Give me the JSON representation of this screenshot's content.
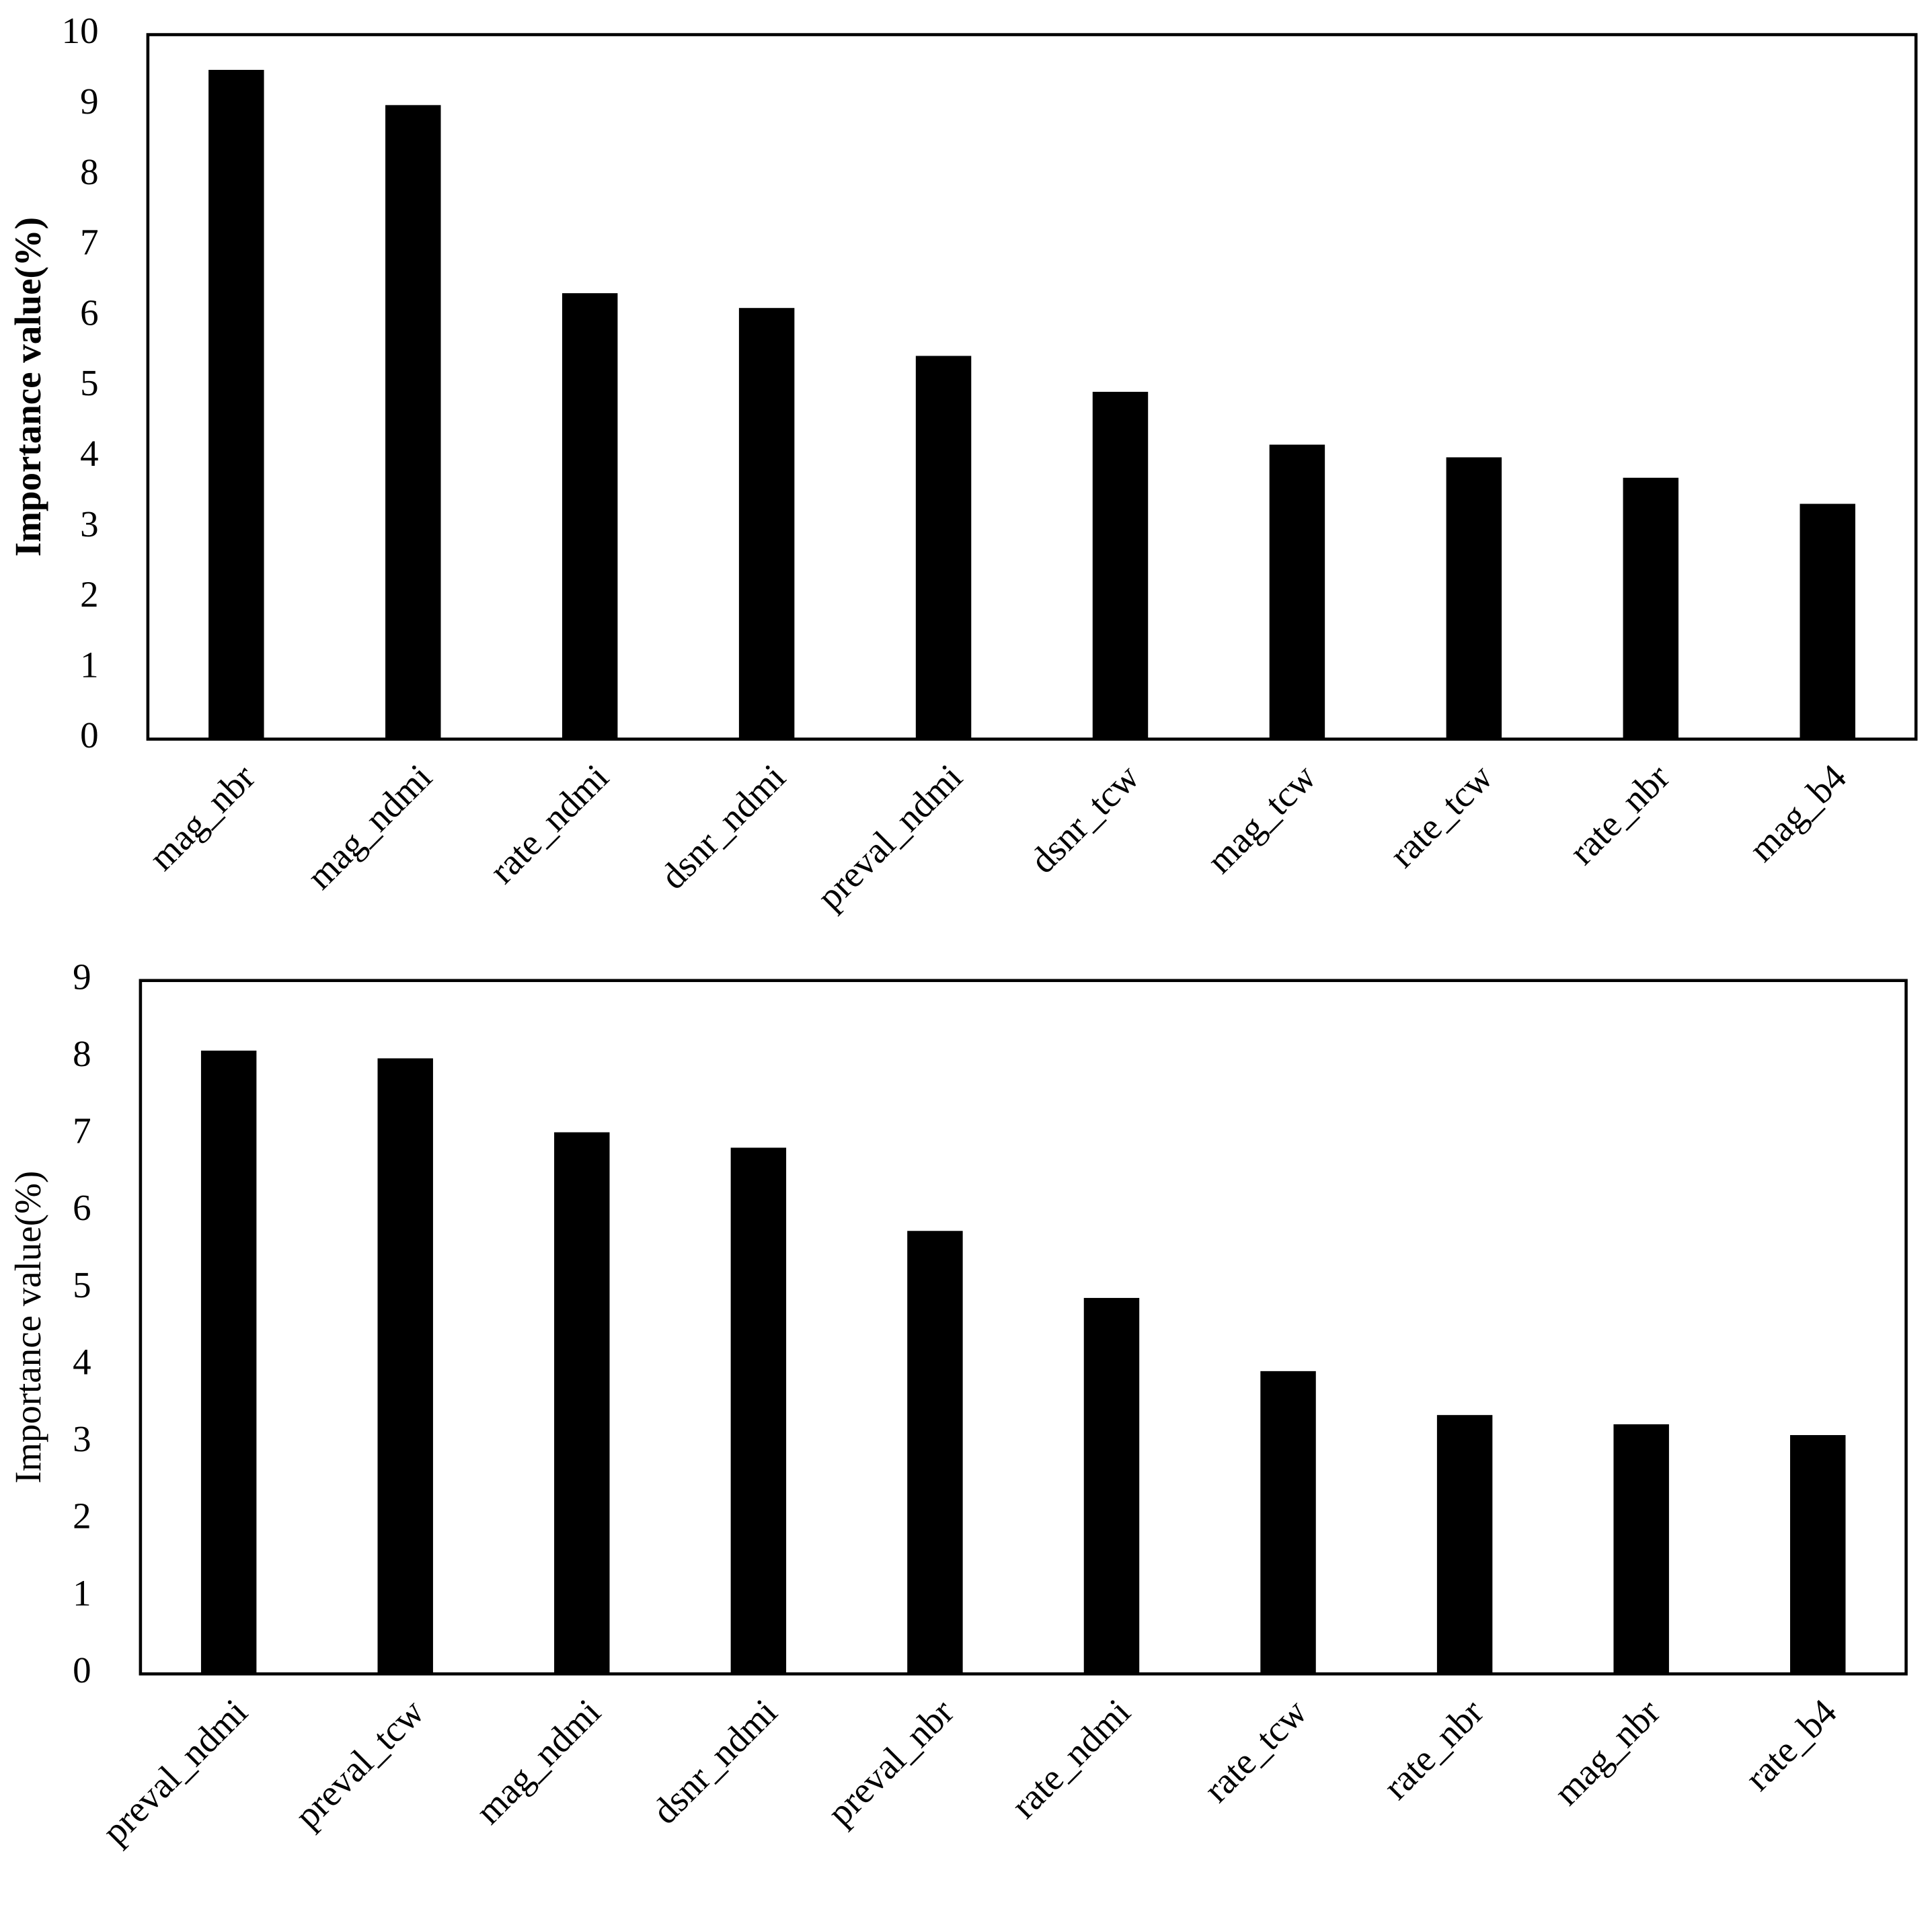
{
  "chart_data": [
    {
      "type": "bar",
      "ylabel": "Importance value(%)",
      "ylabel_weight": "bold",
      "color": "#000000",
      "categories": [
        "mag_nbr",
        "mag_ndmi",
        "rate_ndmi",
        "dsnr_ndmi",
        "preval_ndmi",
        "dsnr_tcw",
        "mag_tcw",
        "rate_tcw",
        "rate_nbr",
        "mag_b4"
      ],
      "values": [
        9.5,
        9.0,
        6.33,
        6.12,
        5.44,
        4.93,
        4.18,
        4.0,
        3.71,
        3.34
      ],
      "ylim": [
        0,
        10
      ],
      "yticks": [
        0,
        1,
        2,
        3,
        4,
        5,
        6,
        7,
        8,
        9,
        10
      ],
      "grid": false
    },
    {
      "type": "bar",
      "ylabel": "Importance value(%)",
      "ylabel_weight": "normal",
      "color": "#000000",
      "categories": [
        "preval_ndmi",
        "preval_tcw",
        "mag_ndmi",
        "dsnr_ndmi",
        "preval_nbr",
        "rate_ndmi",
        "rate_tcw",
        "rate_nbr",
        "mag_nbr",
        "rate_b4"
      ],
      "values": [
        8.09,
        7.99,
        7.03,
        6.83,
        5.75,
        4.88,
        3.93,
        3.36,
        3.24,
        3.1
      ],
      "ylim": [
        0,
        9
      ],
      "yticks": [
        0,
        1,
        2,
        3,
        4,
        5,
        6,
        7,
        8,
        9
      ],
      "grid": false
    }
  ]
}
